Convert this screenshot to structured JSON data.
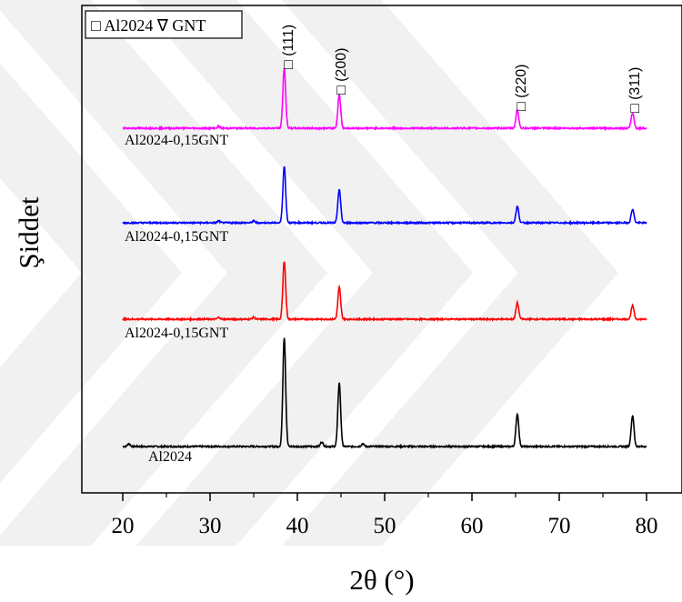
{
  "chart_data": {
    "type": "line",
    "title": "",
    "xlabel": "2θ (°)",
    "ylabel": "Şiddet",
    "xlim": [
      15,
      84
    ],
    "x_ticks": [
      20,
      30,
      40,
      50,
      60,
      70,
      80
    ],
    "y_ticks": [],
    "grid": false,
    "legend_text": "□ Al2024 ∇ GNT",
    "legend_position": "top-left",
    "peaks": [
      {
        "two_theta": 38.5,
        "label": "□ (111)"
      },
      {
        "two_theta": 44.8,
        "label": "□ (200)"
      },
      {
        "two_theta": 65.2,
        "label": "□ (220)"
      },
      {
        "two_theta": 78.4,
        "label": "□ (311)"
      }
    ],
    "series": [
      {
        "label": "Al2024",
        "color": "#000000",
        "offset": 0,
        "peak_heights": [
          120,
          70,
          36,
          34
        ],
        "minor_peaks": [
          [
            20.7,
            3
          ],
          [
            42.8,
            5
          ],
          [
            47.5,
            3
          ]
        ]
      },
      {
        "label": "Al2024-0,15GNT",
        "color": "#ff0000",
        "offset": 140,
        "peak_heights": [
          64,
          35,
          18,
          15
        ],
        "minor_peaks": [
          [
            31.0,
            2
          ],
          [
            35.0,
            2
          ]
        ]
      },
      {
        "label": "Al2024-0,15GNT",
        "color": "#0000ff",
        "offset": 246,
        "peak_heights": [
          62,
          37,
          18,
          15
        ],
        "minor_peaks": [
          [
            31.0,
            2
          ],
          [
            35.0,
            2
          ]
        ]
      },
      {
        "label": "Al2024-0,15GNT",
        "color": "#ff00ff",
        "offset": 350,
        "peak_heights": [
          66,
          37,
          20,
          17
        ],
        "minor_peaks": [
          [
            31.0,
            2
          ]
        ]
      }
    ]
  }
}
